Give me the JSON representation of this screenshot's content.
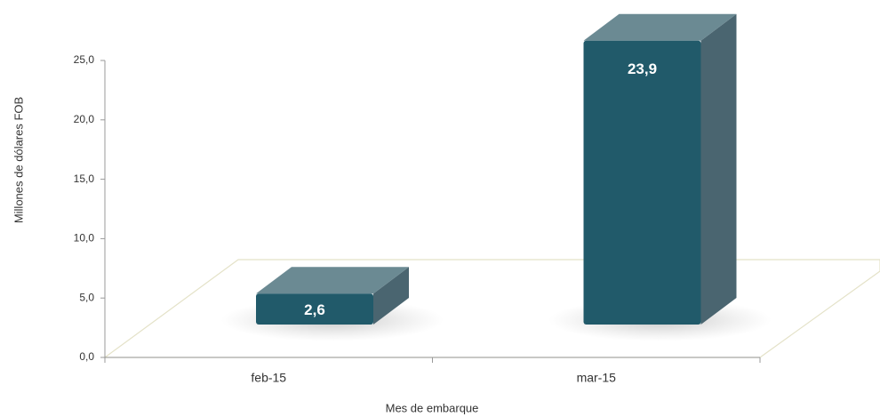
{
  "chart_data": {
    "type": "bar3d",
    "categories": [
      "feb-15",
      "mar-15"
    ],
    "values": [
      2.6,
      23.9
    ],
    "value_labels": [
      "2,6",
      "23,9"
    ],
    "color": "#215a6a",
    "ylim": [
      0,
      25
    ],
    "yticks": [
      {
        "value": 0,
        "label": "0,0"
      },
      {
        "value": 5,
        "label": "5,0"
      },
      {
        "value": 10,
        "label": "10,0"
      },
      {
        "value": 15,
        "label": "15,0"
      },
      {
        "value": 20,
        "label": "20,0"
      },
      {
        "value": 25,
        "label": "25,0"
      }
    ],
    "xlabel": "Mes de embarque",
    "ylabel": "Millones de dólares FOB"
  }
}
